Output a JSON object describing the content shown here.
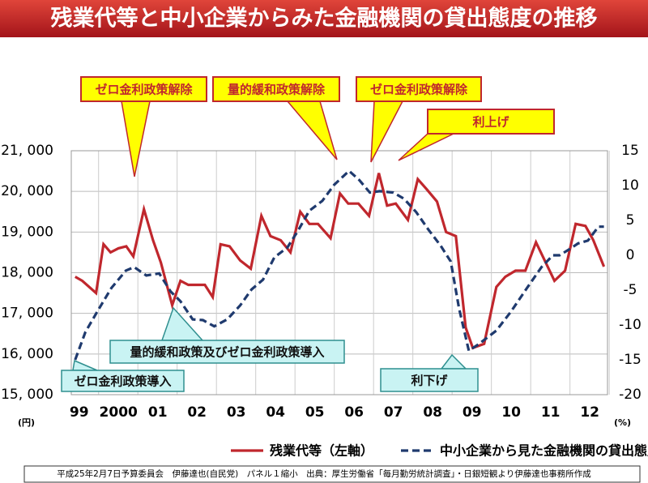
{
  "chart_data": {
    "type": "line",
    "title": "残業代等と中小企業からみた金融機関の貸出態度の推移",
    "y_unit": "(円)",
    "y2_unit": "(%)",
    "xlim": [
      1998.8,
      2012.45
    ],
    "xticks": [
      {
        "value": 1999,
        "label": "99"
      },
      {
        "value": 2000,
        "label": "2000"
      },
      {
        "value": 2001,
        "label": "01"
      },
      {
        "value": 2002,
        "label": "02"
      },
      {
        "value": 2003,
        "label": "03"
      },
      {
        "value": 2004,
        "label": "04"
      },
      {
        "value": 2005,
        "label": "05"
      },
      {
        "value": 2006,
        "label": "06"
      },
      {
        "value": 2007,
        "label": "07"
      },
      {
        "value": 2008,
        "label": "08"
      },
      {
        "value": 2009,
        "label": "09"
      },
      {
        "value": 2010,
        "label": "10"
      },
      {
        "value": 2011,
        "label": "11"
      },
      {
        "value": 2012,
        "label": "12"
      }
    ],
    "ylim": [
      15000,
      21000
    ],
    "yticks": [
      {
        "value": 15000,
        "label": "15, 000"
      },
      {
        "value": 16000,
        "label": "16, 000"
      },
      {
        "value": 17000,
        "label": "17, 000"
      },
      {
        "value": 18000,
        "label": "18, 000"
      },
      {
        "value": 19000,
        "label": "19, 000"
      },
      {
        "value": 20000,
        "label": "20, 000"
      },
      {
        "value": 21000,
        "label": "21, 000"
      }
    ],
    "y2lim": [
      -20,
      15
    ],
    "y2ticks": [
      -20,
      -15,
      -10,
      -5,
      0,
      5,
      10,
      15
    ],
    "grid": true,
    "series": [
      {
        "name": "残業代等（左軸）",
        "color": "#c0272d",
        "dash": false,
        "x": [
          1998.9,
          1999.08,
          1999.43,
          1999.62,
          1999.8,
          2000.0,
          2000.2,
          2000.38,
          2000.65,
          2000.88,
          2001.08,
          2001.37,
          2001.58,
          2001.78,
          2002.2,
          2002.4,
          2002.6,
          2002.83,
          2003.1,
          2003.37,
          2003.64,
          2003.87,
          2004.13,
          2004.38,
          2004.63,
          2004.86,
          2005.08,
          2005.4,
          2005.64,
          2005.85,
          2006.11,
          2006.38,
          2006.63,
          2006.84,
          2007.06,
          2007.37,
          2007.62,
          2007.85,
          2008.11,
          2008.34,
          2008.59,
          2008.84,
          2009.02,
          2009.31,
          2009.62,
          2009.85,
          2010.11,
          2010.36,
          2010.63,
          2011.1,
          2011.37,
          2011.64,
          2011.89,
          2012.09,
          2012.36
        ],
        "values": [
          17900,
          17800,
          17500,
          18700,
          18500,
          18600,
          18650,
          18400,
          19560,
          18800,
          18250,
          17200,
          17800,
          17700,
          17700,
          17400,
          18700,
          18650,
          18300,
          18100,
          19400,
          18900,
          18800,
          18500,
          19500,
          19200,
          19200,
          18850,
          19950,
          19700,
          19700,
          19400,
          20450,
          19650,
          19700,
          19300,
          20300,
          20050,
          19750,
          19000,
          18900,
          16650,
          16150,
          16250,
          17650,
          17900,
          18050,
          18050,
          18750,
          17800,
          18050,
          19200,
          19150,
          18800,
          18150
        ]
      },
      {
        "name": "中小企業から見た金融機関の貸出態度（右軸）",
        "color": "#1f3a6e",
        "dash": true,
        "axis": "y2",
        "x": [
          1998.9,
          1999.16,
          1999.47,
          1999.82,
          2000.19,
          2000.4,
          2000.71,
          2001.04,
          2001.33,
          2001.58,
          2001.89,
          2002.15,
          2002.44,
          2002.77,
          2003.1,
          2003.39,
          2003.68,
          2003.97,
          2004.3,
          2004.57,
          2004.86,
          2005.19,
          2005.49,
          2005.87,
          2006.13,
          2006.4,
          2006.65,
          2007.0,
          2007.27,
          2007.58,
          2007.89,
          2008.2,
          2008.46,
          2008.67,
          2008.92,
          2009.16,
          2009.62,
          2009.99,
          2010.4,
          2010.77,
          2011.06,
          2011.23,
          2011.49,
          2011.7,
          2011.95,
          2012.22,
          2012.36
        ],
        "values": [
          -15,
          -11,
          -8,
          -4.7,
          -2.2,
          -1.7,
          -2.9,
          -2.6,
          -5.2,
          -6.6,
          -9.2,
          -9.3,
          -10.2,
          -9.2,
          -7.2,
          -4.9,
          -3.5,
          -0.3,
          1.1,
          3.5,
          6.4,
          7.8,
          10.1,
          12.1,
          10.8,
          9,
          9.2,
          9,
          8.1,
          6.2,
          3.7,
          1.4,
          -0.9,
          -7.6,
          -13.7,
          -12.8,
          -10.8,
          -8.1,
          -4.7,
          -1.7,
          0,
          0,
          0.9,
          1.7,
          2.1,
          4.1,
          4.1
        ]
      }
    ],
    "annotations": [
      {
        "text": "ゼロ金利政策解除"
      },
      {
        "text": "量的緩和政策解除"
      },
      {
        "text": "ゼロ金利政策解除"
      },
      {
        "text": "利上げ"
      },
      {
        "text": "量的緩和政策及びゼロ金利政策導入"
      },
      {
        "text": "ゼロ金利政策導入"
      },
      {
        "text": "利下げ"
      }
    ],
    "footer": "平成25年2月7日予算委員会　伊藤達也(自民党)　パネル１縮小　出典：厚生労働省「毎月勤労統計調査」・日銀短観より伊藤達也事務所作成"
  }
}
